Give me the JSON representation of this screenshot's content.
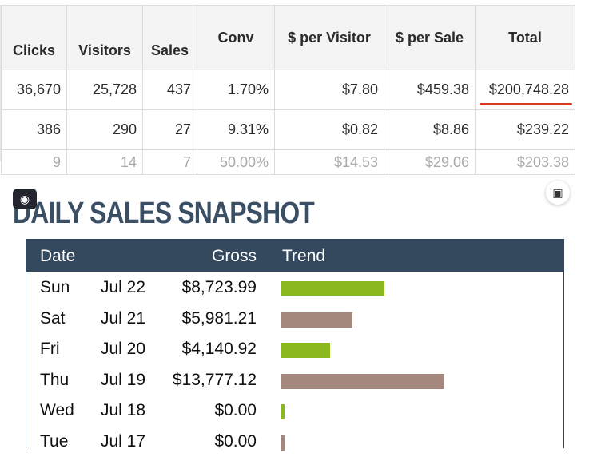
{
  "stats_table": {
    "headers": [
      "Clicks",
      "Visitors",
      "Sales",
      "Conv",
      "$ per Visitor",
      "$ per Sale",
      "Total"
    ],
    "rows": [
      [
        "36,670",
        "25,728",
        "437",
        "1.70%",
        "$7.80",
        "$459.38",
        "$200,748.28"
      ],
      [
        "386",
        "290",
        "27",
        "9.31%",
        "$0.82",
        "$8.86",
        "$239.22"
      ],
      [
        "9",
        "14",
        "7",
        "50.00%",
        "$14.53",
        "$29.06",
        "$203.38"
      ]
    ]
  },
  "colors": {
    "header_dark": "#34495e",
    "title": "#3a4f63",
    "trend_green": "#8ab81e",
    "trend_brown": "#a4887e",
    "underline_red": "#d9391e"
  },
  "snapshot": {
    "title": "DAILY SALES SNAPSHOT",
    "camera_icon": "brain-icon",
    "scan_icon": "scan-icon",
    "headers": {
      "date": "Date",
      "gross": "Gross",
      "trend": "Trend"
    },
    "rows": [
      {
        "day": "Sun",
        "date": "Jul 22",
        "gross": "$8,723.99",
        "trend_value": 8723.99,
        "trend_color": "green"
      },
      {
        "day": "Sat",
        "date": "Jul 21",
        "gross": "$5,981.21",
        "trend_value": 5981.21,
        "trend_color": "brown"
      },
      {
        "day": "Fri",
        "date": "Jul 20",
        "gross": "$4,140.92",
        "trend_value": 4140.92,
        "trend_color": "green"
      },
      {
        "day": "Thu",
        "date": "Jul 19",
        "gross": "$13,777.12",
        "trend_value": 13777.12,
        "trend_color": "brown"
      },
      {
        "day": "Wed",
        "date": "Jul 18",
        "gross": "$0.00",
        "trend_value": 0,
        "trend_color": "green"
      },
      {
        "day": "Tue",
        "date": "Jul 17",
        "gross": "$0.00",
        "trend_value": 0,
        "trend_color": "brown"
      }
    ]
  }
}
